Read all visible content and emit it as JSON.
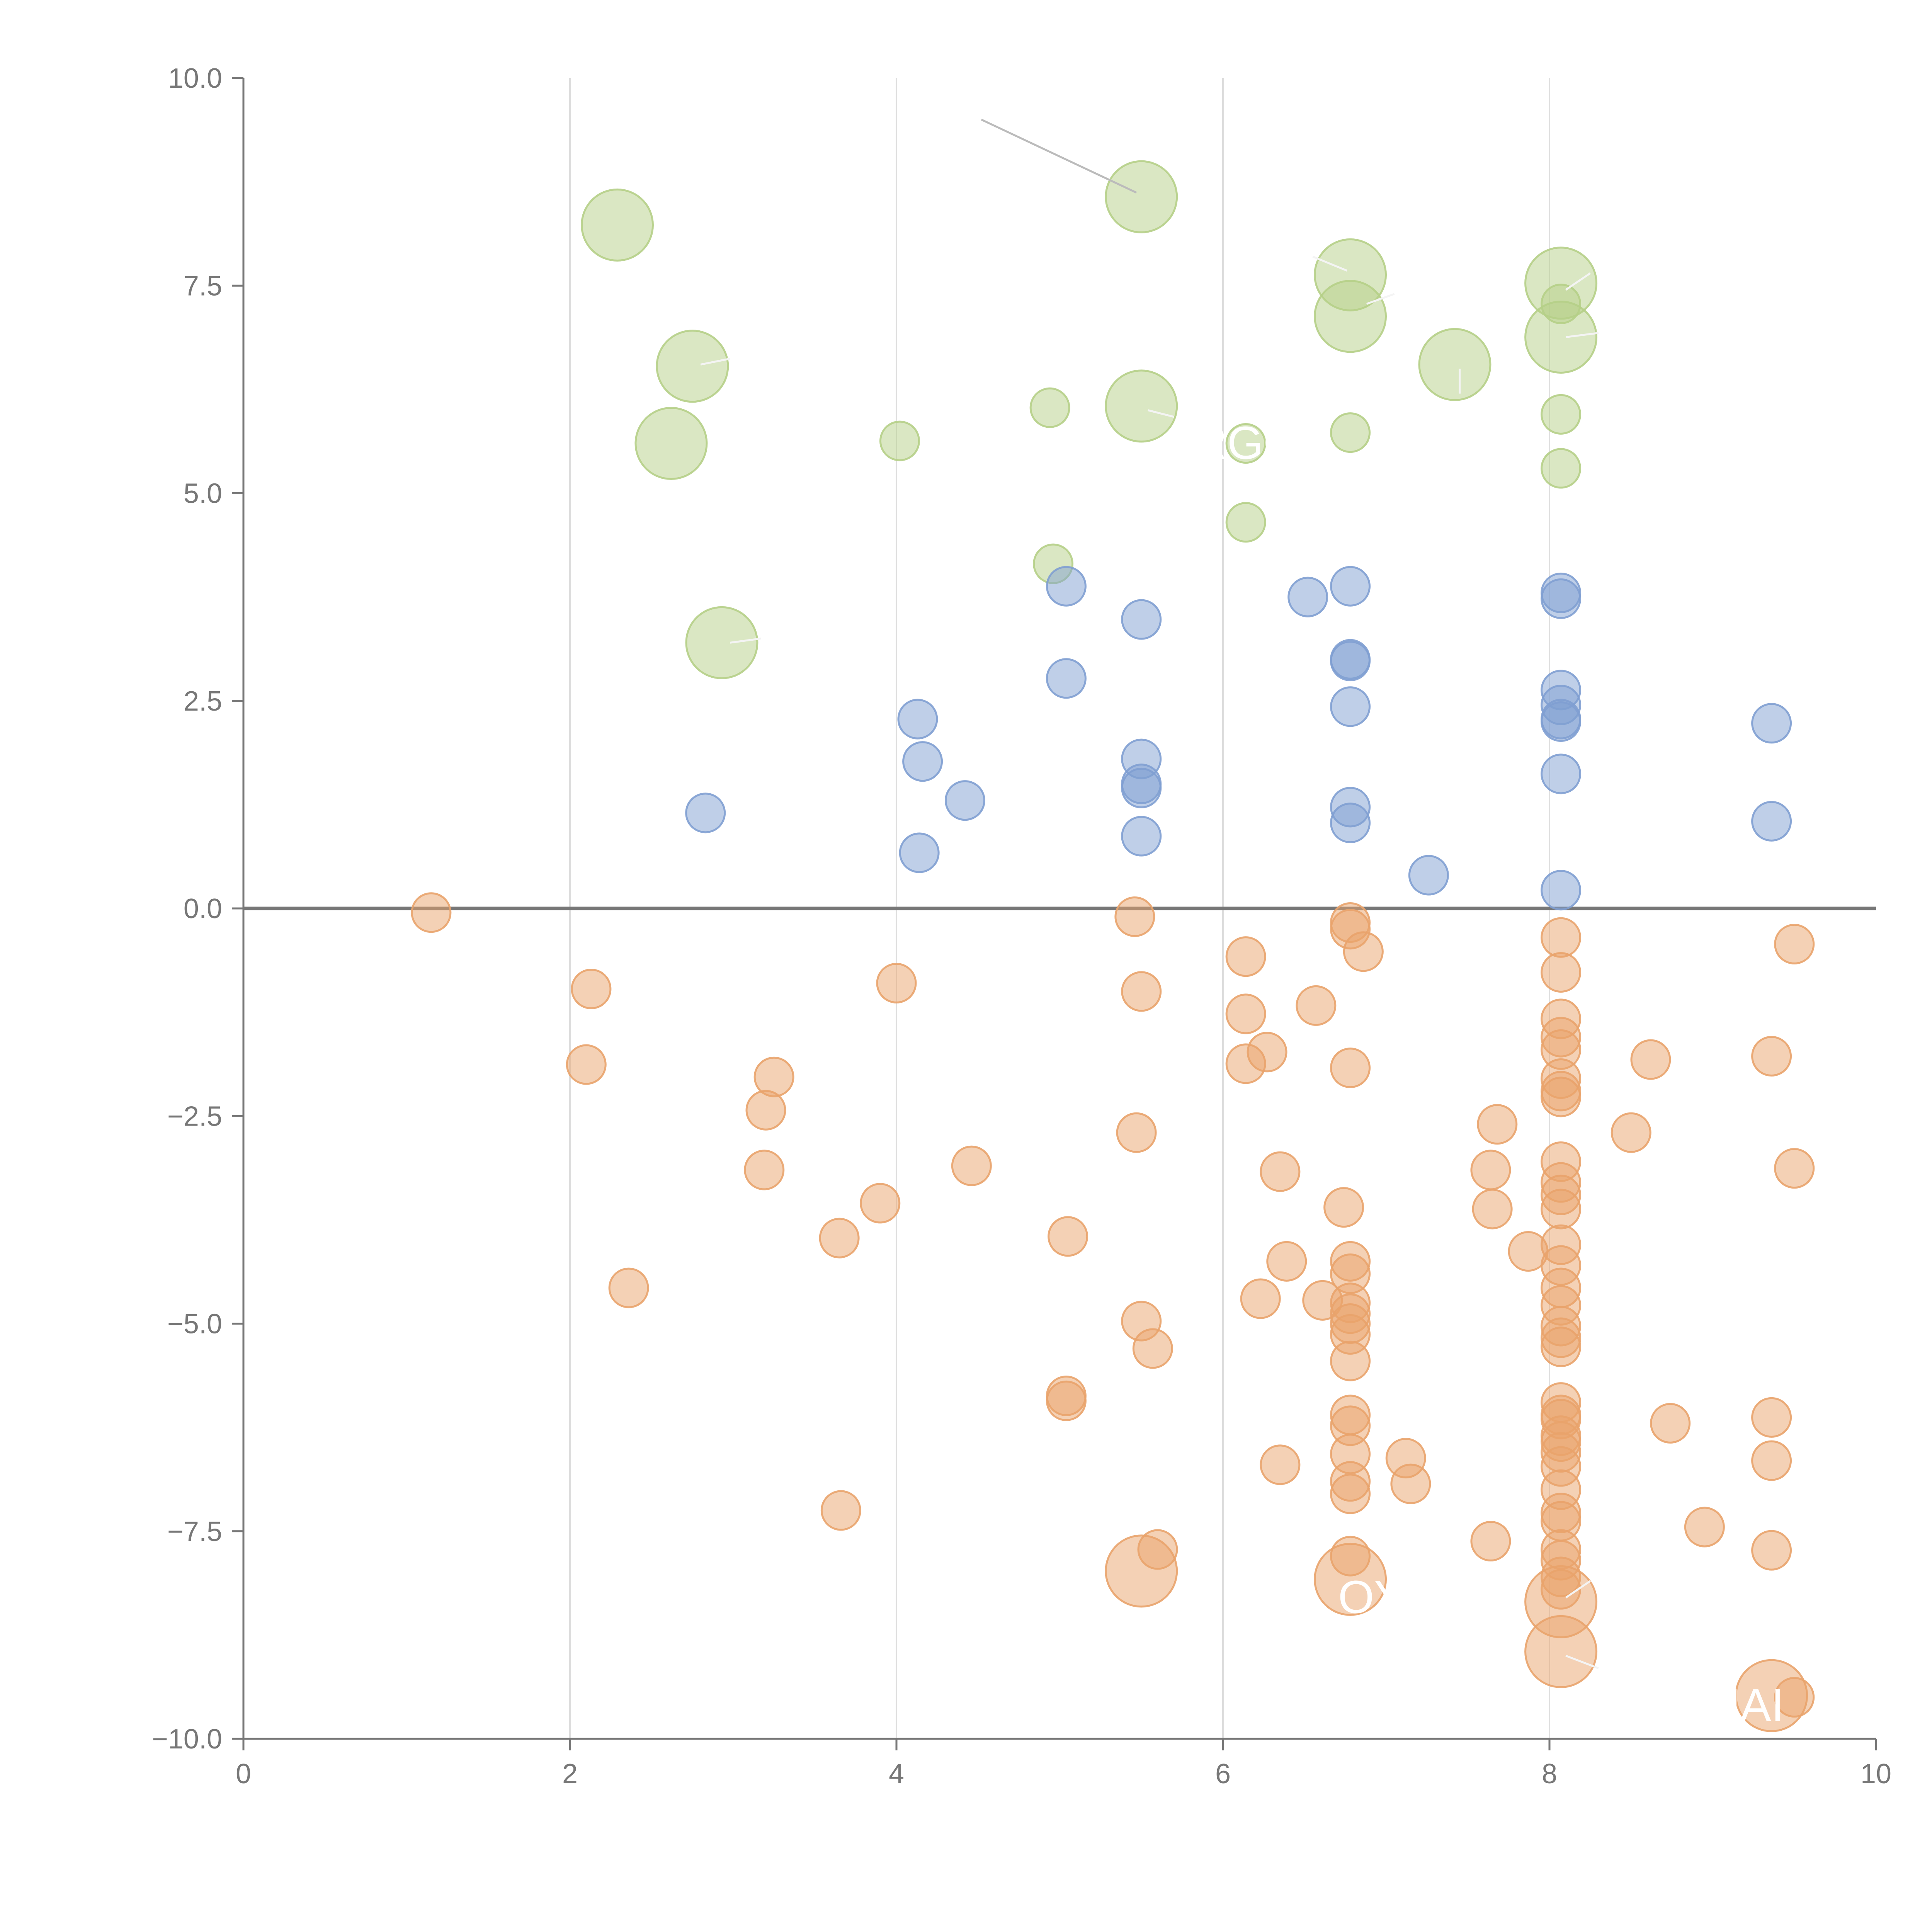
{
  "chart_data": {
    "type": "scatter",
    "title": "",
    "xlabel": "",
    "ylabel": "",
    "xlim": [
      0,
      10
    ],
    "ylim": [
      -10,
      10
    ],
    "x_ticks": [
      "0",
      "2",
      "4",
      "6",
      "8",
      "10"
    ],
    "y_ticks": [
      "10.0",
      "7.5",
      "5.0",
      "2.5",
      "0.0",
      "−2.5",
      "−5.0",
      "−7.5",
      "−10.0"
    ],
    "grid": "vertical",
    "zero_line": true,
    "colors": {
      "green": "#b5cf87",
      "blue": "#7f9fd2",
      "orange": "#e9a36c",
      "axis": "#777777",
      "grid": "#dddddd"
    },
    "series": [
      {
        "color": "green",
        "points": [
          [
            2.29,
            8.23,
            2
          ],
          [
            5.5,
            8.57,
            2
          ],
          [
            6.78,
            7.63,
            2
          ],
          [
            8.07,
            7.53,
            2
          ],
          [
            6.78,
            7.13,
            2
          ],
          [
            8.07,
            7.28,
            1
          ],
          [
            8.07,
            6.88,
            2
          ],
          [
            7.42,
            6.55,
            2
          ],
          [
            2.75,
            6.53,
            2
          ],
          [
            2.62,
            5.6,
            2
          ],
          [
            4.94,
            6.03,
            1
          ],
          [
            5.5,
            6.05,
            2
          ],
          [
            4.02,
            5.63,
            1
          ],
          [
            6.14,
            5.6,
            1
          ],
          [
            6.78,
            5.73,
            1
          ],
          [
            8.07,
            5.95,
            1
          ],
          [
            8.07,
            5.3,
            1
          ],
          [
            6.14,
            4.65,
            1
          ],
          [
            4.96,
            4.15,
            1
          ],
          [
            2.93,
            3.2,
            2
          ]
        ]
      },
      {
        "color": "blue",
        "points": [
          [
            5.04,
            3.88,
            1
          ],
          [
            5.5,
            3.48,
            1
          ],
          [
            6.52,
            3.75,
            1
          ],
          [
            6.78,
            3.88,
            1
          ],
          [
            8.07,
            3.8,
            1
          ],
          [
            8.07,
            3.73,
            1
          ],
          [
            6.78,
            3.0,
            1
          ],
          [
            6.78,
            2.98,
            1
          ],
          [
            5.04,
            2.77,
            1
          ],
          [
            6.78,
            2.43,
            1
          ],
          [
            8.07,
            2.63,
            1
          ],
          [
            8.07,
            2.45,
            1
          ],
          [
            8.07,
            2.28,
            1
          ],
          [
            8.07,
            2.25,
            1
          ],
          [
            9.36,
            2.23,
            1
          ],
          [
            4.13,
            2.28,
            1
          ],
          [
            4.16,
            1.77,
            1
          ],
          [
            4.42,
            1.3,
            1
          ],
          [
            5.5,
            1.8,
            1
          ],
          [
            5.5,
            1.5,
            1
          ],
          [
            5.5,
            1.45,
            1
          ],
          [
            2.83,
            1.15,
            1
          ],
          [
            6.78,
            1.22,
            1
          ],
          [
            6.78,
            1.03,
            1
          ],
          [
            8.07,
            1.62,
            1
          ],
          [
            9.36,
            1.05,
            1
          ],
          [
            4.14,
            0.67,
            1
          ],
          [
            5.5,
            0.87,
            1
          ],
          [
            7.26,
            0.4,
            1
          ],
          [
            8.07,
            0.22,
            1
          ]
        ]
      },
      {
        "color": "orange",
        "points": [
          [
            1.15,
            -0.05,
            1
          ],
          [
            5.46,
            -0.1,
            1
          ],
          [
            6.78,
            -0.17,
            1
          ],
          [
            6.78,
            -0.25,
            1
          ],
          [
            6.86,
            -0.52,
            1
          ],
          [
            8.07,
            -0.35,
            1
          ],
          [
            9.5,
            -0.43,
            1
          ],
          [
            8.07,
            -0.77,
            1
          ],
          [
            6.14,
            -0.58,
            1
          ],
          [
            2.13,
            -0.97,
            1
          ],
          [
            4.0,
            -0.9,
            1
          ],
          [
            5.5,
            -1.0,
            1
          ],
          [
            6.14,
            -1.27,
            1
          ],
          [
            6.57,
            -1.17,
            1
          ],
          [
            8.07,
            -1.33,
            1
          ],
          [
            8.07,
            -1.55,
            1
          ],
          [
            8.07,
            -1.7,
            1
          ],
          [
            6.27,
            -1.73,
            1
          ],
          [
            6.14,
            -1.87,
            1
          ],
          [
            6.78,
            -1.92,
            1
          ],
          [
            8.62,
            -1.82,
            1
          ],
          [
            9.36,
            -1.78,
            1
          ],
          [
            2.1,
            -1.88,
            1
          ],
          [
            3.25,
            -2.03,
            1
          ],
          [
            3.2,
            -2.43,
            1
          ],
          [
            8.07,
            -2.05,
            1
          ],
          [
            8.07,
            -2.2,
            1
          ],
          [
            8.07,
            -2.27,
            1
          ],
          [
            7.68,
            -2.6,
            1
          ],
          [
            5.47,
            -2.7,
            1
          ],
          [
            8.5,
            -2.7,
            1
          ],
          [
            3.19,
            -3.15,
            1
          ],
          [
            4.46,
            -3.1,
            1
          ],
          [
            6.35,
            -3.17,
            1
          ],
          [
            7.64,
            -3.15,
            1
          ],
          [
            8.07,
            -3.05,
            1
          ],
          [
            8.07,
            -3.3,
            1
          ],
          [
            8.07,
            -3.45,
            1
          ],
          [
            9.5,
            -3.13,
            1
          ],
          [
            3.9,
            -3.55,
            1
          ],
          [
            6.74,
            -3.6,
            1
          ],
          [
            7.65,
            -3.62,
            1
          ],
          [
            8.07,
            -3.62,
            1
          ],
          [
            3.65,
            -3.97,
            1
          ],
          [
            5.05,
            -3.95,
            1
          ],
          [
            7.87,
            -4.13,
            1
          ],
          [
            8.07,
            -4.05,
            1
          ],
          [
            6.39,
            -4.25,
            1
          ],
          [
            6.78,
            -4.25,
            1
          ],
          [
            6.78,
            -4.4,
            1
          ],
          [
            8.07,
            -4.3,
            1
          ],
          [
            2.36,
            -4.57,
            1
          ],
          [
            8.07,
            -4.57,
            1
          ],
          [
            6.23,
            -4.7,
            1
          ],
          [
            6.61,
            -4.72,
            1
          ],
          [
            6.78,
            -4.75,
            1
          ],
          [
            6.78,
            -4.88,
            1
          ],
          [
            6.78,
            -5.0,
            1
          ],
          [
            8.07,
            -4.78,
            1
          ],
          [
            8.07,
            -5.03,
            1
          ],
          [
            5.5,
            -4.97,
            1
          ],
          [
            6.78,
            -5.13,
            1
          ],
          [
            8.07,
            -5.17,
            1
          ],
          [
            8.07,
            -5.28,
            1
          ],
          [
            5.57,
            -5.3,
            1
          ],
          [
            6.78,
            -5.45,
            1
          ],
          [
            5.04,
            -5.87,
            1
          ],
          [
            5.04,
            -5.93,
            1
          ],
          [
            8.07,
            -5.95,
            1
          ],
          [
            8.07,
            -6.1,
            1
          ],
          [
            8.07,
            -6.15,
            1
          ],
          [
            6.78,
            -6.1,
            1
          ],
          [
            6.78,
            -6.23,
            1
          ],
          [
            8.74,
            -6.2,
            1
          ],
          [
            9.36,
            -6.13,
            1
          ],
          [
            8.07,
            -6.35,
            1
          ],
          [
            8.07,
            -6.42,
            1
          ],
          [
            8.07,
            -6.55,
            1
          ],
          [
            7.12,
            -6.62,
            1
          ],
          [
            6.78,
            -6.57,
            1
          ],
          [
            6.35,
            -6.7,
            1
          ],
          [
            8.07,
            -6.72,
            1
          ],
          [
            9.36,
            -6.65,
            1
          ],
          [
            6.78,
            -6.9,
            1
          ],
          [
            6.78,
            -7.05,
            1
          ],
          [
            7.15,
            -6.93,
            1
          ],
          [
            8.07,
            -7.0,
            1
          ],
          [
            8.07,
            -7.28,
            1
          ],
          [
            8.07,
            -7.38,
            1
          ],
          [
            8.95,
            -7.45,
            1
          ],
          [
            3.66,
            -7.25,
            1
          ],
          [
            7.64,
            -7.62,
            1
          ],
          [
            5.6,
            -7.72,
            1
          ],
          [
            8.07,
            -7.72,
            1
          ],
          [
            8.07,
            -7.85,
            1
          ],
          [
            9.36,
            -7.73,
            1
          ],
          [
            6.78,
            -7.8,
            1
          ],
          [
            5.5,
            -7.98,
            2
          ],
          [
            6.78,
            -8.08,
            2
          ],
          [
            8.07,
            -8.05,
            1
          ],
          [
            8.07,
            -8.2,
            1
          ],
          [
            8.07,
            -8.35,
            2
          ],
          [
            8.07,
            -8.95,
            2
          ],
          [
            9.36,
            -9.48,
            2
          ],
          [
            9.5,
            -9.5,
            1
          ]
        ]
      }
    ],
    "annotations": [
      {
        "text": "ARGO",
        "x": 6.05,
        "y": 5.6
      },
      {
        "text": "OYI",
        "x": 6.95,
        "y": -8.3
      },
      {
        "text": "HAI",
        "x": 9.2,
        "y": -9.6
      }
    ]
  }
}
